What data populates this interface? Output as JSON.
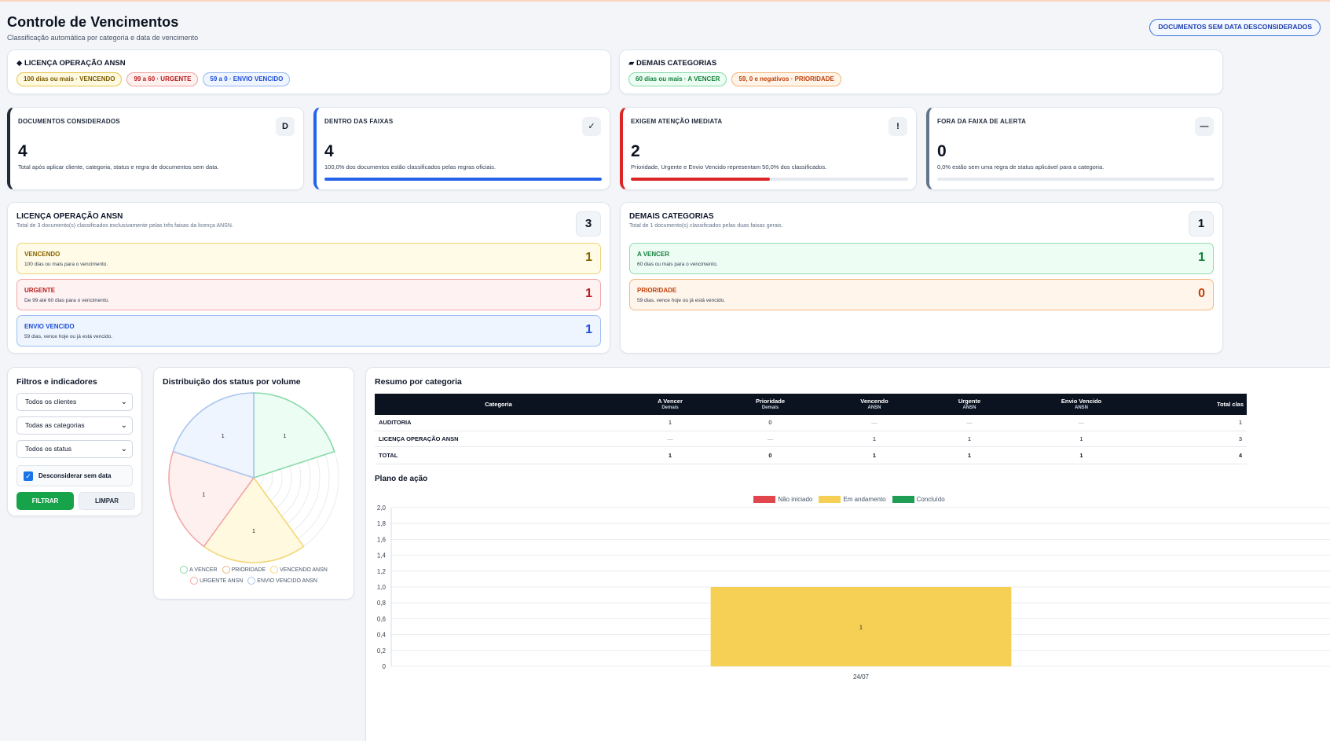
{
  "header": {
    "title": "Controle de Vencimentos",
    "subtitle": "Classificação automática por categoria e data de vencimento",
    "ignored_button": "DOCUMENTOS SEM DATA DESCONSIDERADOS"
  },
  "rules": {
    "ansn": {
      "icon": "◆",
      "title": "LICENÇA OPERAÇÃO ANSN",
      "pills": [
        "100 dias ou mais · VENCENDO",
        "99 a 60 · URGENTE",
        "59 a 0 · ENVIO VENCIDO"
      ]
    },
    "others": {
      "icon": "▰",
      "title": "DEMAIS CATEGORIAS",
      "pills": [
        "60 dias ou mais · A VENCER",
        "59, 0 e negativos · PRIORIDADE"
      ]
    }
  },
  "kpis": [
    {
      "label": "DOCUMENTOS CONSIDERADOS",
      "icon": "D",
      "value": "4",
      "desc": "Total após aplicar cliente, categoria, status e regra de documentos sem data.",
      "progress": null,
      "color": "#1e293b"
    },
    {
      "label": "DENTRO DAS FAIXAS",
      "icon": "✓",
      "value": "4",
      "desc": "100,0% dos documentos estão classificados pelas regras oficiais.",
      "progress": 1.0,
      "color": "#2563eb"
    },
    {
      "label": "EXIGEM ATENÇÃO IMEDIATA",
      "icon": "!",
      "value": "2",
      "desc": "Prioridade, Urgente e Envio Vencido representam 50,0% dos classificados.",
      "progress": 0.5,
      "color": "#dc2626"
    },
    {
      "label": "FORA DA FAIXA DE ALERTA",
      "icon": "—",
      "value": "0",
      "desc": "0,0% estão sem uma regra de status aplicável para a categoria.",
      "progress": 0,
      "color": "#64748b"
    }
  ],
  "sections": {
    "ansn": {
      "title": "LICENÇA OPERAÇÃO ANSN",
      "subtitle": "Total de 3 documento(s) classificados exclusivamente pelas três faixas da licença ANSN.",
      "count": "3",
      "bands": [
        {
          "label": "VENCENDO",
          "desc": "100 dias ou mais para o vencimento.",
          "value": "1"
        },
        {
          "label": "URGENTE",
          "desc": "De 99 até 60 dias para o vencimento.",
          "value": "1"
        },
        {
          "label": "ENVIO VENCIDO",
          "desc": "59 dias, vence hoje ou já está vencido.",
          "value": "1"
        }
      ]
    },
    "others": {
      "title": "DEMAIS CATEGORIAS",
      "subtitle": "Total de 1 documento(s) classificados pelas duas faixas gerais.",
      "count": "1",
      "bands": [
        {
          "label": "A VENCER",
          "desc": "60 dias ou mais para o vencimento.",
          "value": "1"
        },
        {
          "label": "PRIORIDADE",
          "desc": "59 dias, vence hoje ou já está vencido.",
          "value": "0"
        }
      ]
    }
  },
  "filters": {
    "title": "Filtros e indicadores",
    "client": "Todos os clientes",
    "category": "Todas as categorias",
    "status": "Todos os status",
    "ignore_label": "Desconsiderar sem data",
    "filter_button": "FILTRAR",
    "clear_button": "LIMPAR"
  },
  "distribution": {
    "title": "Distribuição dos status por volume"
  },
  "summary": {
    "title": "Resumo por categoria",
    "headers": [
      {
        "main": "Categoria",
        "sub": ""
      },
      {
        "main": "A Vencer",
        "sub": "Demais"
      },
      {
        "main": "Prioridade",
        "sub": "Demais"
      },
      {
        "main": "Vencendo",
        "sub": "ANSN"
      },
      {
        "main": "Urgente",
        "sub": "ANSN"
      },
      {
        "main": "Envio Vencido",
        "sub": "ANSN"
      },
      {
        "main": "Total clas",
        "sub": ""
      }
    ],
    "rows": [
      [
        "AUDITORIA",
        "1",
        "0",
        "—",
        "—",
        "—",
        "1"
      ],
      [
        "LICENÇA OPERAÇÃO ANSN",
        "—",
        "—",
        "1",
        "1",
        "1",
        "3"
      ]
    ],
    "total": [
      "TOTAL",
      "1",
      "0",
      "1",
      "1",
      "1",
      "4"
    ]
  },
  "plan": {
    "title": "Plano de ação",
    "legend": [
      {
        "label": "Não iniciado",
        "color": "#e0474c"
      },
      {
        "label": "Em andamento",
        "color": "#f6cf55"
      },
      {
        "label": "Concluído",
        "color": "#1f9d55"
      }
    ]
  },
  "chart_data": [
    {
      "type": "polar-area",
      "title": "Distribuição dos status por volume",
      "categories": [
        "A VENCER",
        "PRIORIDADE",
        "VENCENDO ANSN",
        "URGENTE ANSN",
        "ENVIO VENCIDO ANSN"
      ],
      "values": [
        1,
        0,
        1,
        1,
        1
      ],
      "colors": [
        "#86d9a7",
        "#f3b37a",
        "#f2d777",
        "#f1a7a7",
        "#a9c4ee"
      ],
      "legend": "bottom"
    },
    {
      "type": "bar",
      "title": "Plano de ação",
      "categories": [
        "24/07"
      ],
      "series": [
        {
          "name": "Não iniciado",
          "values": [
            0
          ]
        },
        {
          "name": "Em andamento",
          "values": [
            1
          ]
        },
        {
          "name": "Concluído",
          "values": [
            0
          ]
        }
      ],
      "ylim": [
        0,
        2
      ],
      "yticks": [
        "0",
        "0,2",
        "0,4",
        "0,6",
        "0,8",
        "1,0",
        "1,2",
        "1,4",
        "1,6",
        "1,8",
        "2,0"
      ],
      "legend": "top",
      "grid": true
    }
  ]
}
